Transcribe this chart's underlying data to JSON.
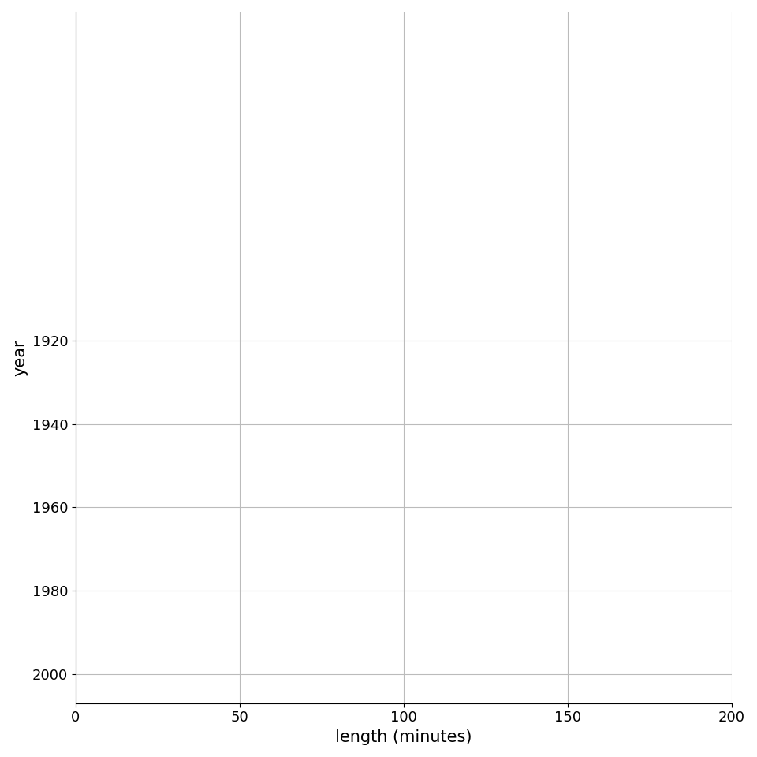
{
  "year_start": 1906,
  "year_end": 2005,
  "x_min": 0,
  "x_max": 200,
  "x_ticks": [
    0,
    50,
    100,
    150,
    200
  ],
  "y_ticks": [
    1920,
    1940,
    1960,
    1980,
    2000
  ],
  "xlabel": "length (minutes)",
  "ylabel": "year",
  "fill_color": "#cccccc",
  "line_color": "#111111",
  "grid_color": "#bbbbbb",
  "background_color": "#ffffff",
  "axis_fontsize": 15,
  "tick_fontsize": 13,
  "line_width": 0.9,
  "fill_alpha": 1.0,
  "scale": 60
}
